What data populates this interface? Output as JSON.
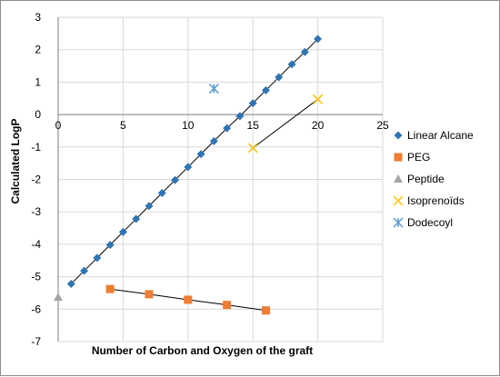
{
  "chart_data": {
    "type": "scatter",
    "title": "",
    "xlabel": "Number of Carbon and Oxygen of the graft",
    "ylabel": "Calculated LogP",
    "xlim": [
      0,
      25
    ],
    "ylim": [
      -7,
      3
    ],
    "x_ticks": [
      0,
      5,
      10,
      15,
      20,
      25
    ],
    "y_ticks": [
      3,
      2,
      1,
      0,
      -1,
      -2,
      -3,
      -4,
      -5,
      -6,
      -7
    ],
    "grid": true,
    "legend_position": "right",
    "series": [
      {
        "name": "Linear Alcane",
        "marker": "diamond",
        "color": "#2E75B6",
        "line": true,
        "x": [
          1,
          2,
          3,
          4,
          5,
          6,
          7,
          8,
          9,
          10,
          11,
          12,
          13,
          14,
          15,
          16,
          17,
          18,
          19,
          20
        ],
        "y": [
          -5.22,
          -4.82,
          -4.42,
          -4.02,
          -3.62,
          -3.22,
          -2.82,
          -2.42,
          -2.02,
          -1.62,
          -1.22,
          -0.82,
          -0.42,
          -0.05,
          0.35,
          0.75,
          1.15,
          1.55,
          1.93,
          2.33
        ]
      },
      {
        "name": "PEG",
        "marker": "square",
        "color": "#ED7D31",
        "line": true,
        "x": [
          4,
          7,
          10,
          13,
          16
        ],
        "y": [
          -5.38,
          -5.54,
          -5.71,
          -5.87,
          -6.04
        ]
      },
      {
        "name": "Peptide",
        "marker": "triangle",
        "color": "#A5A5A5",
        "line": false,
        "x": [
          0
        ],
        "y": [
          -5.63
        ]
      },
      {
        "name": "Isoprenoïds",
        "marker": "x",
        "color": "#FFC000",
        "line": true,
        "x": [
          15,
          20
        ],
        "y": [
          -1.03,
          0.47
        ]
      },
      {
        "name": "Dodecoyl",
        "marker": "star",
        "color": "#5B9BD5",
        "line": false,
        "x": [
          12
        ],
        "y": [
          0.8
        ]
      }
    ]
  }
}
